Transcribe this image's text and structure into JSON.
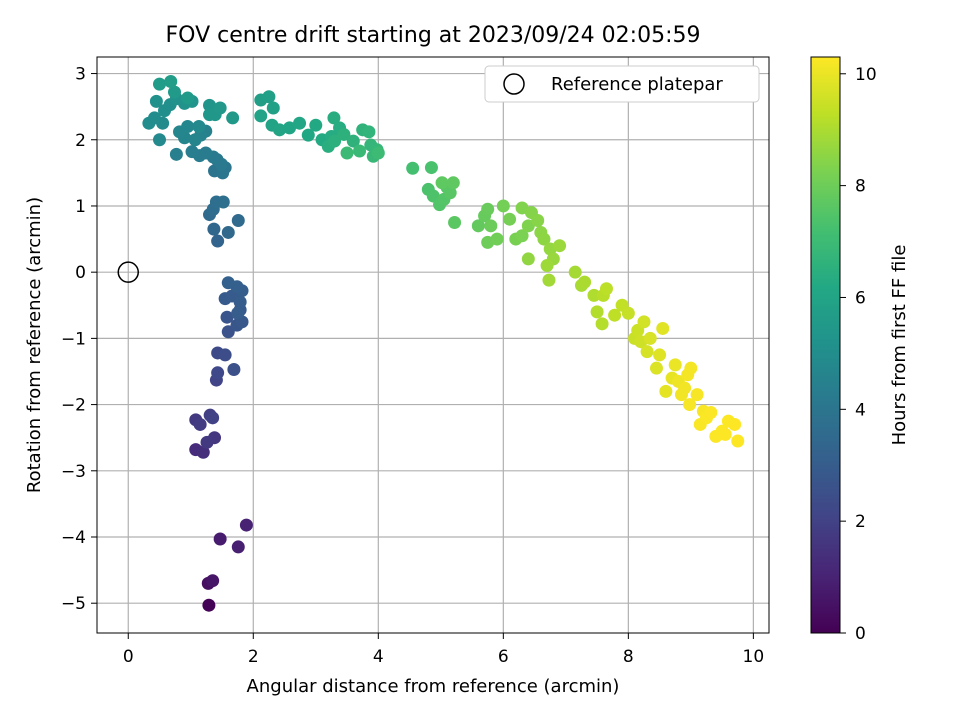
{
  "chart_data": {
    "type": "scatter",
    "title": "FOV centre drift starting at 2023/09/24 02:05:59",
    "xlabel": "Angular distance from reference (arcmin)",
    "ylabel": "Rotation from reference (arcmin)",
    "xlim": [
      -0.5,
      10.25
    ],
    "ylim": [
      -5.45,
      3.25
    ],
    "xticks": [
      0,
      2,
      4,
      6,
      8,
      10
    ],
    "yticks": [
      -5,
      -4,
      -3,
      -2,
      -1,
      0,
      1,
      2,
      3
    ],
    "grid": true,
    "legend": {
      "position": "top-right",
      "entries": [
        "Reference platepar"
      ]
    },
    "reference_point": {
      "x": 0,
      "y": 0
    },
    "colorbar": {
      "label": "Hours from first FF file",
      "range": [
        0,
        10.3
      ],
      "ticks": [
        0,
        2,
        4,
        6,
        8,
        10
      ],
      "colormap": "viridis"
    },
    "series": [
      {
        "points": [
          [
            1.29,
            -5.03,
            0.05
          ],
          [
            1.28,
            -4.7,
            0.4
          ],
          [
            1.35,
            -4.66,
            0.6
          ],
          [
            1.47,
            -4.03,
            0.8
          ],
          [
            1.76,
            -4.15,
            0.9
          ],
          [
            1.89,
            -3.82,
            1.0
          ],
          [
            1.08,
            -2.68,
            1.3
          ],
          [
            1.2,
            -2.72,
            1.4
          ],
          [
            1.38,
            -2.5,
            1.6
          ],
          [
            1.08,
            -2.23,
            1.7
          ],
          [
            1.15,
            -2.3,
            1.8
          ],
          [
            1.31,
            -2.16,
            1.9
          ],
          [
            1.35,
            -2.2,
            2.0
          ],
          [
            1.26,
            -2.57,
            1.7
          ],
          [
            1.41,
            -1.63,
            2.1
          ],
          [
            1.43,
            -1.52,
            2.2
          ],
          [
            1.43,
            -1.22,
            2.3
          ],
          [
            1.55,
            -1.25,
            2.4
          ],
          [
            1.69,
            -1.47,
            2.5
          ],
          [
            1.6,
            -0.9,
            2.6
          ],
          [
            1.58,
            -0.68,
            2.7
          ],
          [
            1.74,
            -0.8,
            2.75
          ],
          [
            1.82,
            -0.75,
            2.8
          ],
          [
            1.79,
            -0.57,
            2.85
          ],
          [
            1.55,
            -0.4,
            2.9
          ],
          [
            1.66,
            -0.36,
            2.95
          ],
          [
            1.79,
            -0.45,
            3.0
          ],
          [
            1.82,
            -0.28,
            3.05
          ],
          [
            1.74,
            -0.22,
            3.1
          ],
          [
            1.6,
            -0.16,
            3.15
          ],
          [
            1.75,
            -0.62,
            3.0
          ],
          [
            1.43,
            0.47,
            3.3
          ],
          [
            1.37,
            0.65,
            3.4
          ],
          [
            1.6,
            0.6,
            3.5
          ],
          [
            1.76,
            0.78,
            3.55
          ],
          [
            1.3,
            0.87,
            3.6
          ],
          [
            1.36,
            0.95,
            3.65
          ],
          [
            1.41,
            1.06,
            3.7
          ],
          [
            1.52,
            1.06,
            3.75
          ],
          [
            1.38,
            1.53,
            3.9
          ],
          [
            1.51,
            1.5,
            4.0
          ],
          [
            1.55,
            1.58,
            4.05
          ],
          [
            1.42,
            1.7,
            4.1
          ],
          [
            1.49,
            1.63,
            4.15
          ],
          [
            1.36,
            1.74,
            4.2
          ],
          [
            1.24,
            1.8,
            4.25
          ],
          [
            1.14,
            1.76,
            4.3
          ],
          [
            1.02,
            1.82,
            4.35
          ],
          [
            0.77,
            1.78,
            4.4
          ],
          [
            1.24,
            2.13,
            4.5
          ],
          [
            1.16,
            2.07,
            4.55
          ],
          [
            1.07,
            2.0,
            4.6
          ],
          [
            0.9,
            2.03,
            4.65
          ],
          [
            0.82,
            2.12,
            4.7
          ],
          [
            0.95,
            2.2,
            4.75
          ],
          [
            1.13,
            2.2,
            4.8
          ],
          [
            0.5,
            2.0,
            4.85
          ],
          [
            0.55,
            2.25,
            4.9
          ],
          [
            0.33,
            2.25,
            4.95
          ],
          [
            0.42,
            2.33,
            5.0
          ],
          [
            0.58,
            2.44,
            5.05
          ],
          [
            0.67,
            2.53,
            5.1
          ],
          [
            0.45,
            2.58,
            5.15
          ],
          [
            0.77,
            2.62,
            5.2
          ],
          [
            0.9,
            2.55,
            5.25
          ],
          [
            1.02,
            2.58,
            5.3
          ],
          [
            1.3,
            2.52,
            5.35
          ],
          [
            1.39,
            2.38,
            5.4
          ],
          [
            1.47,
            2.48,
            5.45
          ],
          [
            1.67,
            2.33,
            5.5
          ],
          [
            0.74,
            2.72,
            5.55
          ],
          [
            0.95,
            2.63,
            5.6
          ],
          [
            0.5,
            2.84,
            5.65
          ],
          [
            0.68,
            2.88,
            5.7
          ],
          [
            1.3,
            2.38,
            5.4
          ],
          [
            2.12,
            2.6,
            5.75
          ],
          [
            2.25,
            2.65,
            5.8
          ],
          [
            2.32,
            2.48,
            5.85
          ],
          [
            2.12,
            2.36,
            5.9
          ],
          [
            2.3,
            2.22,
            5.95
          ],
          [
            2.42,
            2.15,
            6.0
          ],
          [
            2.58,
            2.18,
            6.05
          ],
          [
            2.74,
            2.25,
            6.1
          ],
          [
            2.88,
            2.07,
            6.15
          ],
          [
            3.0,
            2.22,
            6.2
          ],
          [
            3.1,
            2.0,
            6.25
          ],
          [
            3.25,
            2.05,
            6.3
          ],
          [
            3.38,
            2.18,
            6.35
          ],
          [
            3.29,
            2.33,
            6.4
          ],
          [
            3.2,
            1.9,
            6.45
          ],
          [
            3.3,
            1.98,
            6.5
          ],
          [
            3.45,
            2.08,
            6.55
          ],
          [
            3.6,
            1.98,
            6.6
          ],
          [
            3.75,
            2.15,
            6.65
          ],
          [
            3.85,
            2.12,
            6.7
          ],
          [
            3.88,
            1.92,
            6.75
          ],
          [
            3.98,
            1.85,
            6.8
          ],
          [
            3.92,
            1.75,
            6.85
          ],
          [
            3.7,
            1.83,
            6.9
          ],
          [
            3.5,
            1.8,
            6.95
          ],
          [
            4.0,
            1.8,
            7.0
          ],
          [
            4.55,
            1.57,
            7.2
          ],
          [
            4.85,
            1.58,
            7.3
          ],
          [
            4.8,
            1.25,
            7.35
          ],
          [
            4.88,
            1.15,
            7.4
          ],
          [
            4.98,
            1.02,
            7.45
          ],
          [
            5.05,
            1.1,
            7.5
          ],
          [
            5.1,
            1.28,
            7.55
          ],
          [
            5.15,
            1.2,
            7.6
          ],
          [
            5.22,
            0.75,
            7.65
          ],
          [
            5.02,
            1.35,
            7.7
          ],
          [
            5.2,
            1.35,
            7.75
          ],
          [
            5.6,
            0.7,
            7.8
          ],
          [
            5.7,
            0.85,
            7.85
          ],
          [
            5.75,
            0.95,
            7.9
          ],
          [
            5.8,
            0.7,
            7.95
          ],
          [
            5.75,
            0.45,
            8.0
          ],
          [
            5.9,
            0.5,
            8.05
          ],
          [
            6.0,
            1.0,
            8.1
          ],
          [
            6.1,
            0.8,
            8.15
          ],
          [
            6.2,
            0.5,
            8.2
          ],
          [
            6.3,
            0.55,
            8.25
          ],
          [
            6.4,
            0.7,
            8.3
          ],
          [
            6.3,
            0.97,
            8.35
          ],
          [
            6.45,
            0.9,
            8.4
          ],
          [
            6.55,
            0.78,
            8.45
          ],
          [
            6.6,
            0.6,
            8.5
          ],
          [
            6.65,
            0.5,
            8.55
          ],
          [
            6.4,
            0.2,
            8.6
          ],
          [
            6.75,
            0.35,
            8.65
          ],
          [
            6.8,
            0.2,
            8.7
          ],
          [
            6.9,
            0.4,
            8.75
          ],
          [
            6.7,
            0.1,
            8.8
          ],
          [
            6.73,
            -0.12,
            8.85
          ],
          [
            7.15,
            0.0,
            8.9
          ],
          [
            7.25,
            -0.2,
            8.95
          ],
          [
            7.3,
            -0.15,
            9.0
          ],
          [
            7.45,
            -0.35,
            9.05
          ],
          [
            7.5,
            -0.6,
            9.1
          ],
          [
            7.58,
            -0.78,
            9.15
          ],
          [
            7.6,
            -0.35,
            9.2
          ],
          [
            7.65,
            -0.25,
            9.25
          ],
          [
            7.78,
            -0.65,
            9.3
          ],
          [
            7.9,
            -0.5,
            9.35
          ],
          [
            8.0,
            -0.62,
            9.4
          ],
          [
            8.1,
            -1.0,
            9.45
          ],
          [
            8.15,
            -0.88,
            9.5
          ],
          [
            8.2,
            -1.05,
            9.55
          ],
          [
            8.25,
            -0.75,
            9.6
          ],
          [
            8.3,
            -1.2,
            9.65
          ],
          [
            8.35,
            -1.0,
            9.7
          ],
          [
            8.45,
            -1.45,
            9.75
          ],
          [
            8.5,
            -1.25,
            9.8
          ],
          [
            8.55,
            -0.85,
            9.85
          ],
          [
            8.6,
            -1.8,
            9.9
          ],
          [
            8.7,
            -1.6,
            9.95
          ],
          [
            8.75,
            -1.4,
            10.0
          ],
          [
            8.8,
            -1.65,
            10.05
          ],
          [
            8.85,
            -1.85,
            10.1
          ],
          [
            8.9,
            -1.75,
            10.1
          ],
          [
            8.95,
            -1.55,
            10.15
          ],
          [
            9.0,
            -1.45,
            10.15
          ],
          [
            9.1,
            -1.85,
            10.2
          ],
          [
            8.98,
            -2.0,
            10.2
          ],
          [
            9.2,
            -2.1,
            10.22
          ],
          [
            9.15,
            -2.3,
            10.24
          ],
          [
            9.25,
            -2.2,
            10.25
          ],
          [
            9.32,
            -2.12,
            10.26
          ],
          [
            9.4,
            -2.48,
            10.27
          ],
          [
            9.5,
            -2.4,
            10.28
          ],
          [
            9.6,
            -2.25,
            10.29
          ],
          [
            9.7,
            -2.3,
            10.3
          ],
          [
            9.75,
            -2.55,
            10.3
          ],
          [
            9.55,
            -2.45,
            10.3
          ]
        ]
      }
    ]
  }
}
